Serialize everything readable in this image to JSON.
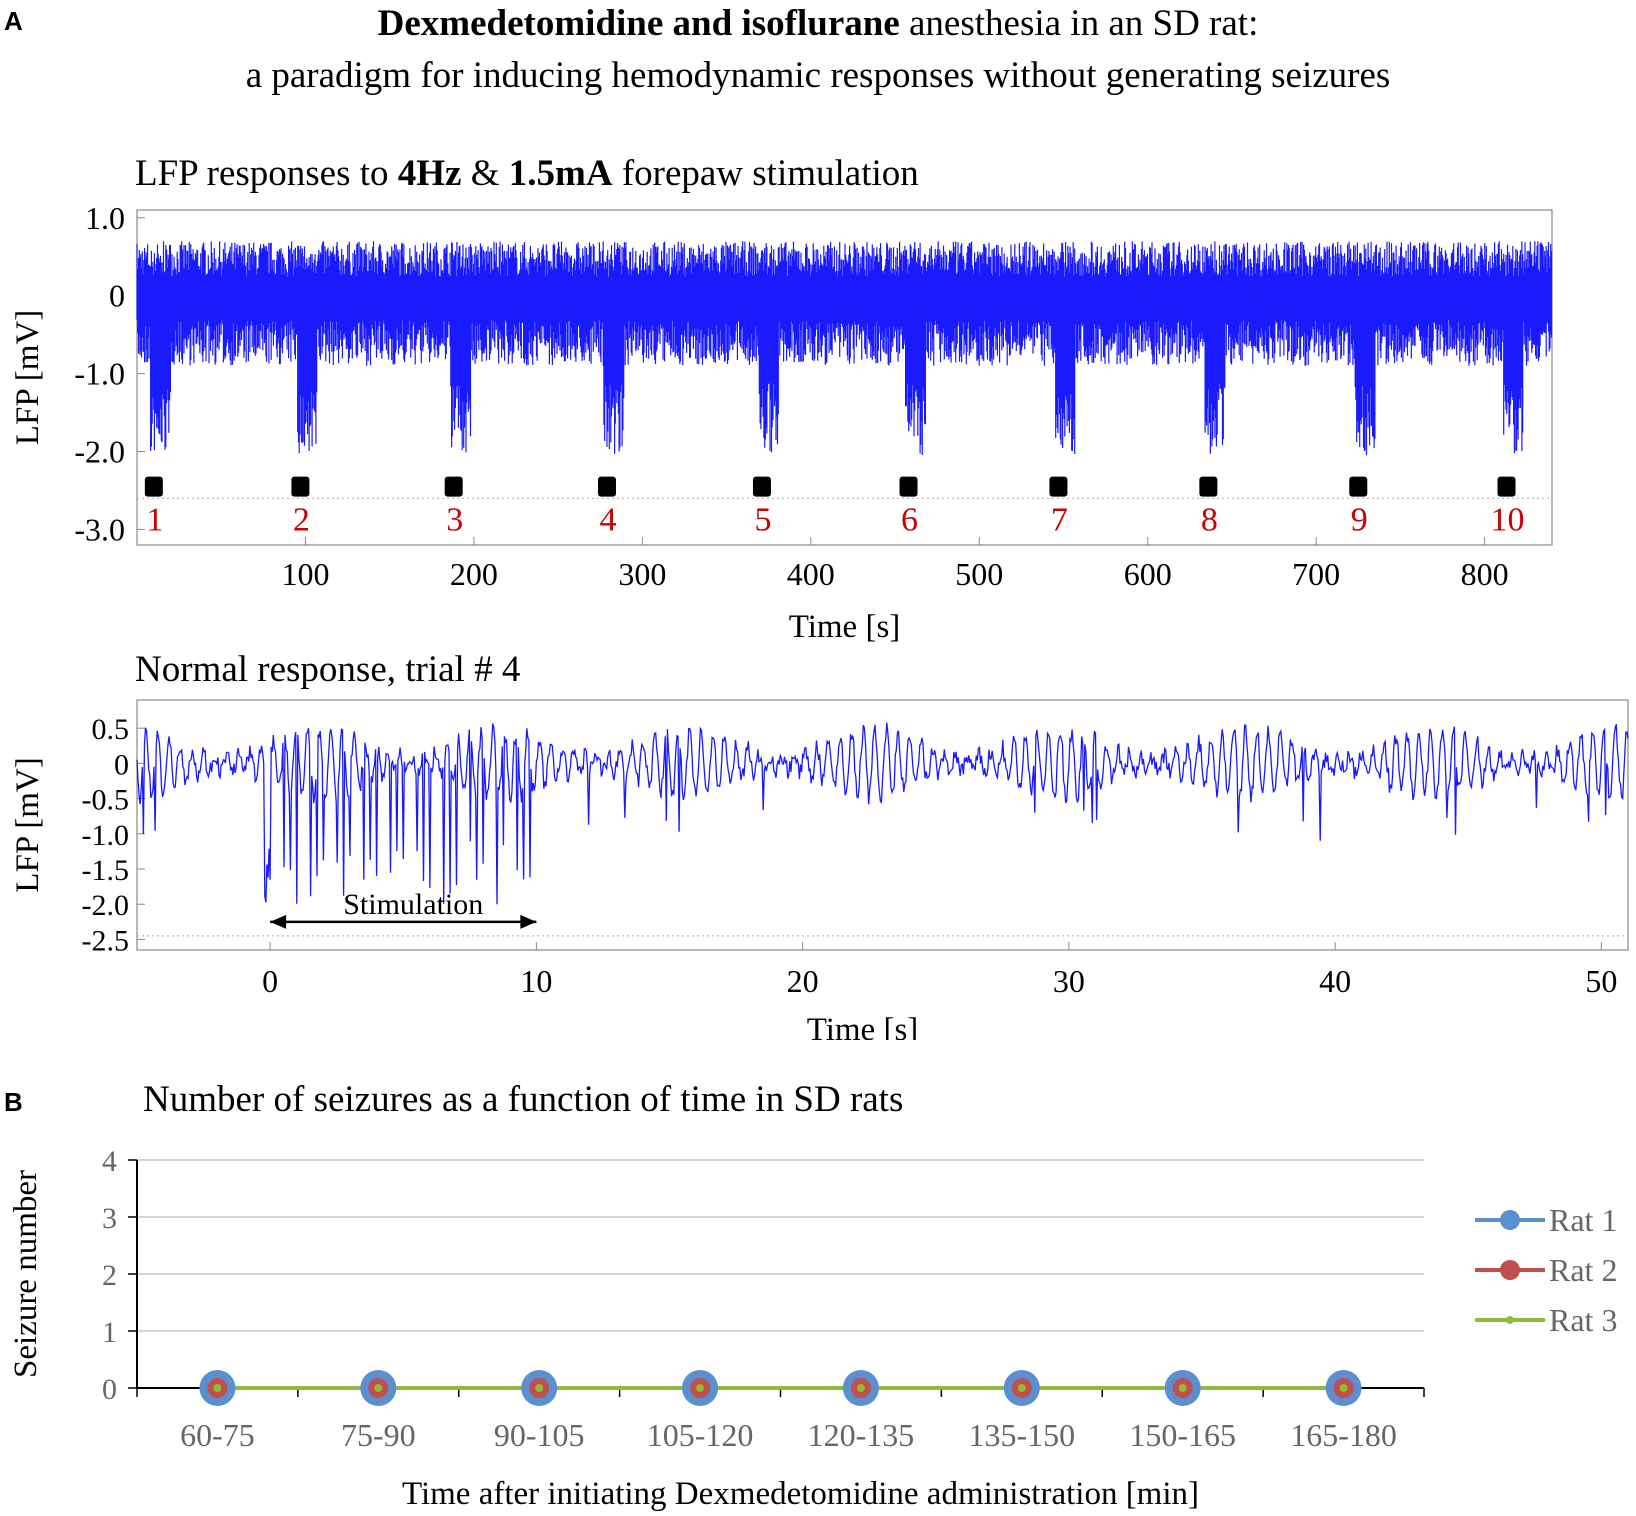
{
  "panels": {
    "a": "A",
    "b": "B"
  },
  "title": {
    "line1_bold": "Dexmedetomidine and isoflurane",
    "line1_rest": " anesthesia in an SD rat:",
    "line2": "a paradigm for inducing hemodynamic responses without generating seizures"
  },
  "colors": {
    "lfp_trace": "#1a1aff",
    "stim_marker": "#000000",
    "trial_number": "#cc0000",
    "rat1": "#5b8fcf",
    "rat2": "#c0504d",
    "rat3": "#8dbb3c"
  },
  "chart_data": [
    {
      "type": "line",
      "title_parts": [
        "LFP responses to ",
        "4Hz",
        " & ",
        "1.5mA",
        " forepaw stimulation"
      ],
      "xlabel": "Time [s]",
      "ylabel": "LFP [mV]",
      "xlim": [
        0,
        840
      ],
      "ylim": [
        -3.2,
        1.1
      ],
      "xticks": [
        100,
        200,
        300,
        400,
        500,
        600,
        700,
        800
      ],
      "yticks": [
        {
          "v": 1.0,
          "label": "1.0"
        },
        {
          "v": 0,
          "label": "0"
        },
        {
          "v": -1.0,
          "label": "-1.0"
        },
        {
          "v": -2.0,
          "label": "-2.0"
        },
        {
          "v": -3.0,
          "label": "-3.0"
        }
      ],
      "baseline_envelope": [
        -0.9,
        0.7
      ],
      "stimulation_onsets": [
        10,
        97,
        188,
        279,
        371,
        458,
        547,
        636,
        725,
        813
      ],
      "stimulation_duration": 10,
      "response_min": -2.05,
      "stim_marker_level": -2.45,
      "trial_labels": [
        "1",
        "2",
        "3",
        "4",
        "5",
        "6",
        "7",
        "8",
        "9",
        "10"
      ],
      "dotted_line_level": -2.6
    },
    {
      "type": "line",
      "title": "Normal response, trial # 4",
      "xlabel": "Time [s]",
      "ylabel": "LFP [mV]",
      "xlim": [
        -5,
        51
      ],
      "ylim": [
        -2.65,
        0.9
      ],
      "xticks": [
        0,
        10,
        20,
        30,
        40,
        50
      ],
      "yticks": [
        {
          "v": 0.5,
          "label": "0.5"
        },
        {
          "v": 0,
          "label": "0"
        },
        {
          "v": -0.5,
          "label": "-0.5"
        },
        {
          "v": -1.0,
          "label": "-1.0"
        },
        {
          "v": -1.5,
          "label": "-1.5"
        },
        {
          "v": -2.0,
          "label": "-2.0"
        },
        {
          "v": -2.5,
          "label": "-2.5"
        }
      ],
      "stimulation_window": [
        0,
        10
      ],
      "stimulation_label": "Stimulation",
      "stimulation_arrow_level": -2.25,
      "oscillation_amplitude": 0.65,
      "response_min": -2.0,
      "dotted_line_level": -2.45
    },
    {
      "type": "line",
      "title": "Number of seizures as a function of time in SD rats",
      "xlabel": "Time after initiating Dexmedetomidine administration [min]",
      "ylabel": "Seizure number",
      "categories": [
        "60-75",
        "75-90",
        "90-105",
        "105-120",
        "120-135",
        "135-150",
        "150-165",
        "165-180"
      ],
      "ylim": [
        0,
        4
      ],
      "yticks": [
        0,
        1,
        2,
        3,
        4
      ],
      "grid": true,
      "legend_position": "right",
      "series": [
        {
          "name": "Rat 1",
          "values": [
            0,
            0,
            0,
            0,
            0,
            0,
            0,
            0
          ]
        },
        {
          "name": "Rat 2",
          "values": [
            0,
            0,
            0,
            0,
            0,
            0,
            0,
            0
          ]
        },
        {
          "name": "Rat 3",
          "values": [
            0,
            0,
            0,
            0,
            0,
            0,
            0,
            0
          ]
        }
      ]
    }
  ]
}
